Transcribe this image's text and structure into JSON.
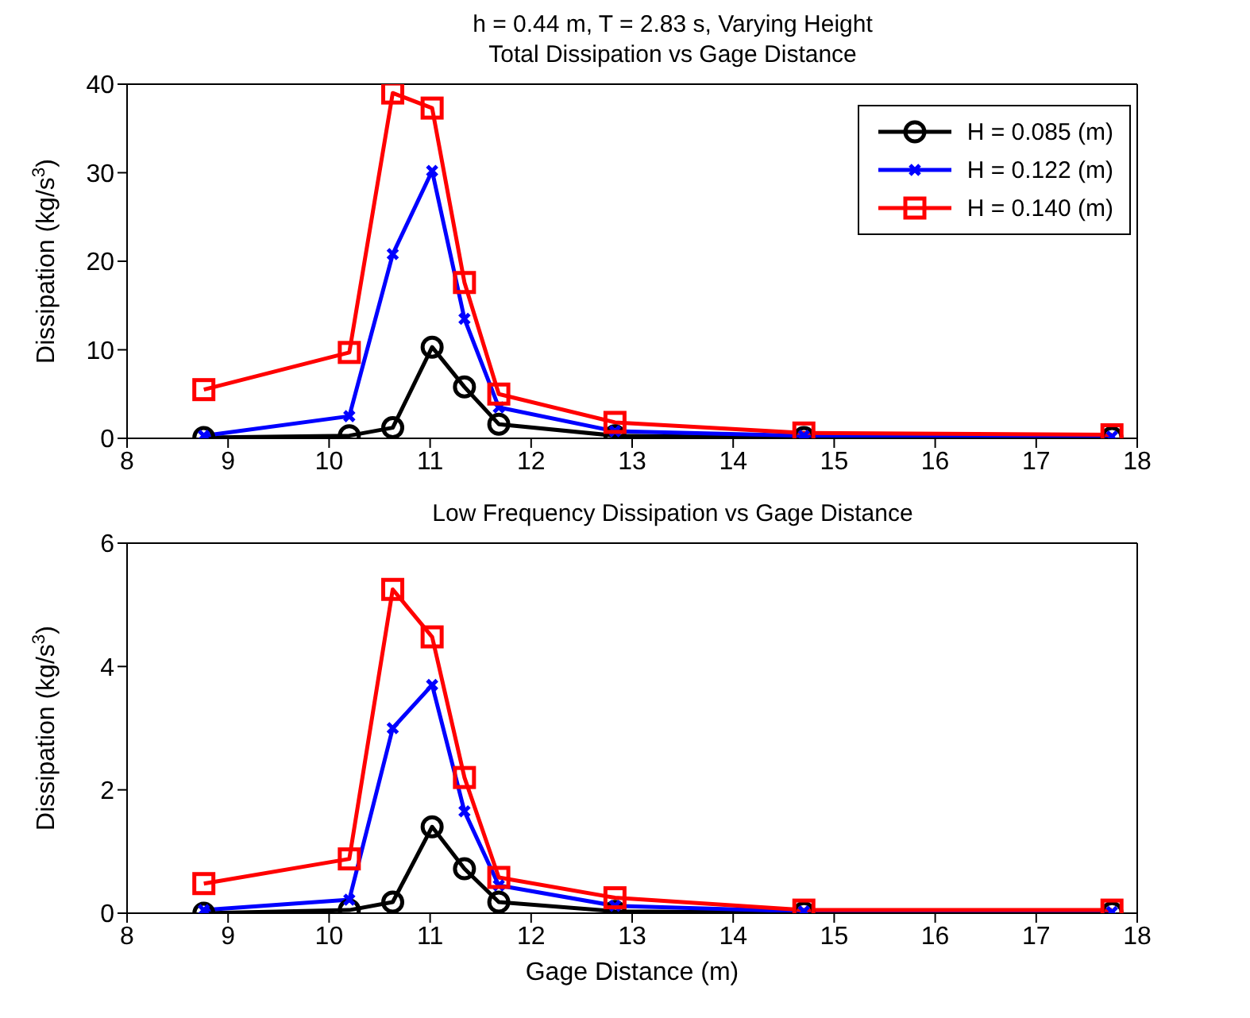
{
  "chart_data": [
    {
      "type": "line",
      "title": "h = 0.44 m, T = 2.83 s, Varying Height",
      "subtitle": "Total Dissipation vs Gage Distance",
      "ylabel": "Dissipation (kg/s$^{3}$)",
      "x": [
        8.76,
        10.2,
        10.63,
        11.02,
        11.34,
        11.68,
        12.83,
        14.7,
        17.75
      ],
      "xlim": [
        8,
        18
      ],
      "xticks": [
        8,
        9,
        10,
        11,
        12,
        13,
        14,
        15,
        16,
        17,
        18
      ],
      "ylim": [
        0,
        40
      ],
      "yticks": [
        0,
        10,
        20,
        30,
        40
      ],
      "grid": false,
      "legend": "top right",
      "line_style": "solid",
      "series": [
        {
          "name": "H = 0.085 (m)",
          "color": "#000000",
          "marker": "circle",
          "values": [
            0.1,
            0.3,
            1.2,
            10.3,
            5.8,
            1.6,
            0.3,
            0.1,
            0.1
          ]
        },
        {
          "name": "H = 0.122 (m)",
          "color": "#0000ff",
          "marker": "cross",
          "values": [
            0.3,
            2.5,
            20.8,
            30.2,
            13.5,
            3.5,
            0.8,
            0.3,
            0.2
          ]
        },
        {
          "name": "H = 0.140 (m)",
          "color": "#ff0000",
          "marker": "square",
          "values": [
            5.5,
            9.7,
            39.0,
            37.3,
            17.6,
            5.0,
            1.8,
            0.6,
            0.4
          ]
        }
      ]
    },
    {
      "type": "line",
      "title": "Low Frequency Dissipation vs Gage Distance",
      "xlabel": "Gage Distance (m)",
      "ylabel": "Dissipation (kg/s$^{3}$)",
      "x": [
        8.76,
        10.2,
        10.63,
        11.02,
        11.34,
        11.68,
        12.83,
        14.7,
        17.75
      ],
      "xlim": [
        8,
        18
      ],
      "xticks": [
        8,
        9,
        10,
        11,
        12,
        13,
        14,
        15,
        16,
        17,
        18
      ],
      "ylim": [
        0,
        6
      ],
      "yticks": [
        0,
        2,
        4,
        6
      ],
      "grid": false,
      "legend": false,
      "line_style": "solid",
      "series": [
        {
          "color": "#000000",
          "marker": "circle",
          "values": [
            0.0,
            0.05,
            0.18,
            1.4,
            0.72,
            0.18,
            0.03,
            0.01,
            0.01
          ]
        },
        {
          "color": "#0000ff",
          "marker": "cross",
          "values": [
            0.05,
            0.22,
            3.0,
            3.7,
            1.65,
            0.45,
            0.12,
            0.03,
            0.02
          ]
        },
        {
          "color": "#ff0000",
          "marker": "square",
          "values": [
            0.48,
            0.88,
            5.25,
            4.48,
            2.2,
            0.58,
            0.25,
            0.05,
            0.05
          ]
        }
      ]
    }
  ]
}
